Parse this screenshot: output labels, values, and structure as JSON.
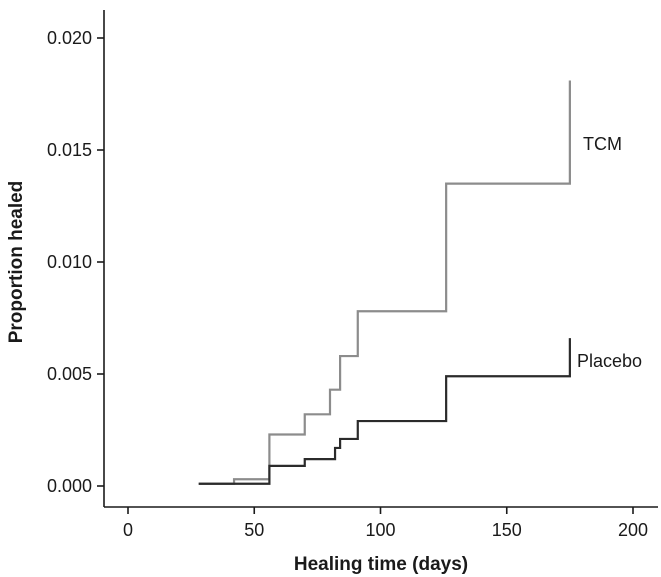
{
  "chart_data": {
    "type": "line",
    "title": "",
    "xlabel": "Healing time (days)",
    "ylabel": "Proportion healed",
    "xlim": [
      -10,
      210
    ],
    "ylim": [
      -0.0012,
      0.0212
    ],
    "x_ticks": [
      0,
      50,
      100,
      150,
      200
    ],
    "y_ticks": [
      0.0,
      0.005,
      0.01,
      0.015,
      0.02
    ],
    "x_tick_labels": [
      "0",
      "50",
      "100",
      "150",
      "200"
    ],
    "y_tick_labels": [
      "0.000",
      "0.005",
      "0.010",
      "0.015",
      "0.020"
    ],
    "step": "post",
    "grid": false,
    "series": [
      {
        "name": "TCM",
        "color": "#8c8c8c",
        "x": [
          28,
          42,
          56,
          70,
          80,
          82,
          84,
          91,
          126,
          175,
          175
        ],
        "y": [
          0.0001,
          0.0003,
          0.0023,
          0.0032,
          0.0043,
          0.0043,
          0.0058,
          0.0078,
          0.0135,
          0.0135,
          0.0181
        ]
      },
      {
        "name": "Placebo",
        "color": "#2b2b2b",
        "x": [
          28,
          42,
          56,
          70,
          80,
          82,
          84,
          91,
          126,
          175,
          175
        ],
        "y": [
          0.0001,
          0.0001,
          0.0009,
          0.0012,
          0.0012,
          0.0017,
          0.0021,
          0.0029,
          0.0049,
          0.0049,
          0.0066
        ]
      }
    ]
  }
}
